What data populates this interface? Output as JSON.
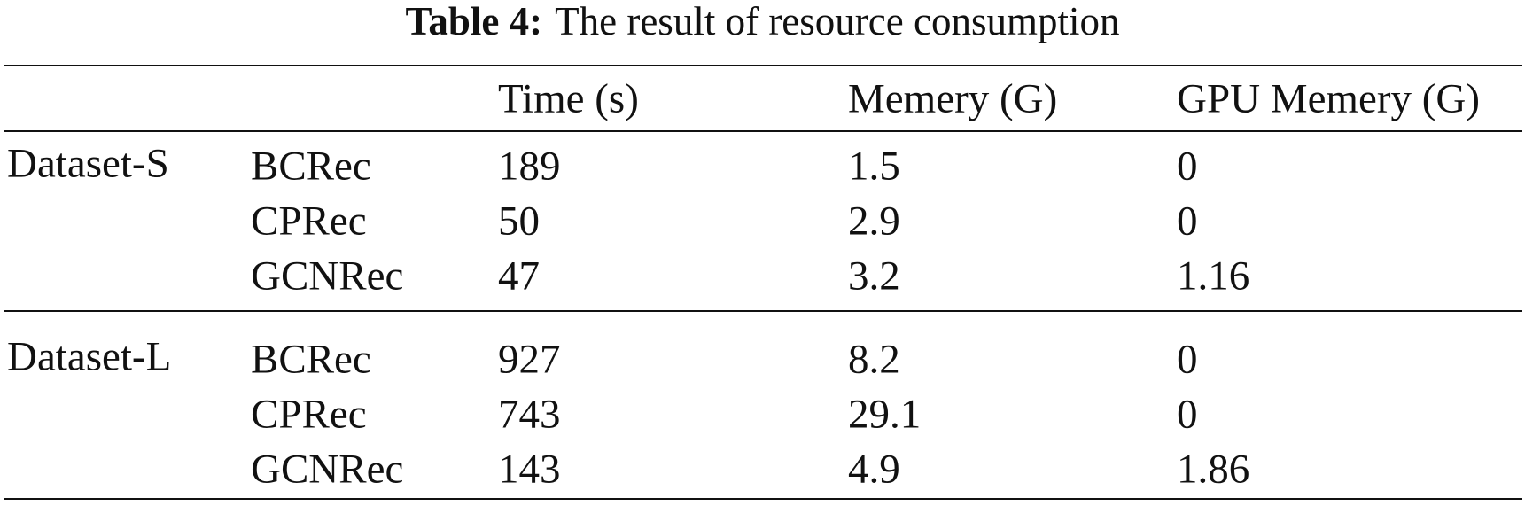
{
  "title": {
    "label": "Table 4:",
    "text": "The result of resource consumption"
  },
  "table": {
    "columns": [
      "Time (s)",
      "Memery (G)",
      "GPU Memery (G)"
    ],
    "groups": [
      {
        "name": "Dataset-S",
        "rows": [
          {
            "model": "BCRec",
            "values": [
              189,
              1.5,
              0
            ]
          },
          {
            "model": "CPRec",
            "values": [
              50,
              2.9,
              0
            ]
          },
          {
            "model": "GCNRec",
            "values": [
              47,
              3.2,
              1.16
            ]
          }
        ]
      },
      {
        "name": "Dataset-L",
        "rows": [
          {
            "model": "BCRec",
            "values": [
              927,
              8.2,
              0
            ]
          },
          {
            "model": "CPRec",
            "values": [
              743,
              29.1,
              0
            ]
          },
          {
            "model": "GCNRec",
            "values": [
              143,
              4.9,
              1.86
            ]
          }
        ]
      }
    ]
  }
}
